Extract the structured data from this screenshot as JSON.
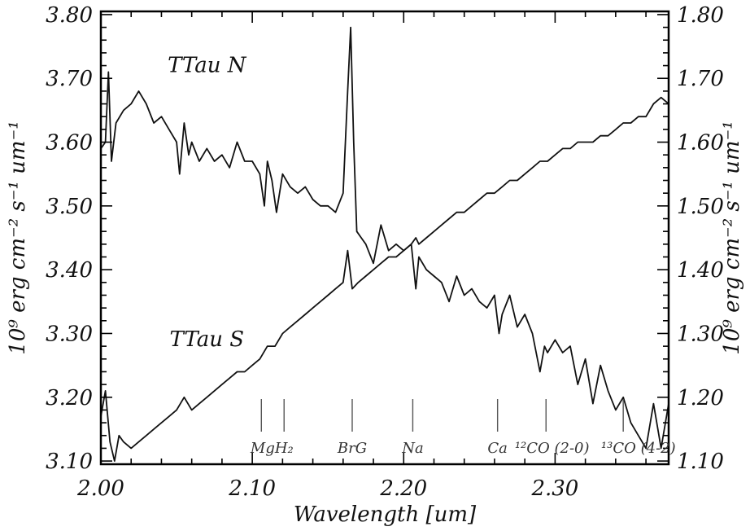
{
  "chart_data": {
    "type": "line",
    "xlabel": "Wavelength [um]",
    "ylabel_left": "10⁹ erg cm⁻² s⁻¹ um⁻¹",
    "ylabel_right": "10⁹ erg cm⁻² s⁻¹ um⁻¹",
    "xlim": [
      2.0,
      2.375
    ],
    "ylim_left": [
      3.095,
      3.805
    ],
    "ylim_right": [
      1.095,
      1.805
    ],
    "x_ticks": [
      2.0,
      2.1,
      2.2,
      2.3
    ],
    "x_tick_labels": [
      "2.00",
      "2.10",
      "2.20",
      "2.30"
    ],
    "y_left_ticks": [
      3.1,
      3.2,
      3.3,
      3.4,
      3.5,
      3.6,
      3.7,
      3.8
    ],
    "y_left_tick_labels": [
      "3.10",
      "3.20",
      "3.30",
      "3.40",
      "3.50",
      "3.60",
      "3.70",
      "3.80"
    ],
    "y_right_ticks": [
      1.1,
      1.2,
      1.3,
      1.4,
      1.5,
      1.6,
      1.7,
      1.8
    ],
    "y_right_tick_labels": [
      "1.10",
      "1.20",
      "1.30",
      "1.40",
      "1.50",
      "1.60",
      "1.70",
      "1.80"
    ],
    "grid": false,
    "series": [
      {
        "name": "TTau N",
        "axis": "left",
        "x": [
          2.0,
          2.003,
          2.005,
          2.007,
          2.01,
          2.015,
          2.02,
          2.025,
          2.03,
          2.035,
          2.04,
          2.045,
          2.05,
          2.052,
          2.055,
          2.058,
          2.06,
          2.065,
          2.07,
          2.075,
          2.08,
          2.085,
          2.09,
          2.095,
          2.1,
          2.105,
          2.108,
          2.11,
          2.113,
          2.116,
          2.12,
          2.125,
          2.13,
          2.135,
          2.14,
          2.145,
          2.15,
          2.155,
          2.16,
          2.163,
          2.165,
          2.167,
          2.169,
          2.172,
          2.175,
          2.18,
          2.185,
          2.19,
          2.195,
          2.2,
          2.205,
          2.208,
          2.21,
          2.215,
          2.22,
          2.225,
          2.23,
          2.235,
          2.24,
          2.245,
          2.25,
          2.255,
          2.26,
          2.263,
          2.265,
          2.27,
          2.275,
          2.28,
          2.285,
          2.29,
          2.293,
          2.295,
          2.3,
          2.305,
          2.31,
          2.315,
          2.32,
          2.325,
          2.33,
          2.335,
          2.34,
          2.345,
          2.35,
          2.355,
          2.36,
          2.365,
          2.37,
          2.375
        ],
        "y": [
          3.59,
          3.6,
          3.71,
          3.57,
          3.63,
          3.65,
          3.66,
          3.68,
          3.66,
          3.63,
          3.64,
          3.62,
          3.6,
          3.55,
          3.63,
          3.58,
          3.6,
          3.57,
          3.59,
          3.57,
          3.58,
          3.56,
          3.6,
          3.57,
          3.57,
          3.55,
          3.5,
          3.57,
          3.54,
          3.49,
          3.55,
          3.53,
          3.52,
          3.53,
          3.51,
          3.5,
          3.5,
          3.49,
          3.52,
          3.68,
          3.78,
          3.6,
          3.46,
          3.45,
          3.44,
          3.41,
          3.47,
          3.43,
          3.44,
          3.43,
          3.44,
          3.37,
          3.42,
          3.4,
          3.39,
          3.38,
          3.35,
          3.39,
          3.36,
          3.37,
          3.35,
          3.34,
          3.36,
          3.3,
          3.33,
          3.36,
          3.31,
          3.33,
          3.3,
          3.24,
          3.28,
          3.27,
          3.29,
          3.27,
          3.28,
          3.22,
          3.26,
          3.19,
          3.25,
          3.21,
          3.18,
          3.2,
          3.16,
          3.14,
          3.12,
          3.19,
          3.12,
          3.19
        ]
      },
      {
        "name": "TTau S",
        "axis": "right",
        "x": [
          2.0,
          2.003,
          2.006,
          2.009,
          2.012,
          2.015,
          2.02,
          2.025,
          2.03,
          2.035,
          2.04,
          2.045,
          2.05,
          2.055,
          2.06,
          2.065,
          2.07,
          2.075,
          2.08,
          2.085,
          2.09,
          2.095,
          2.1,
          2.105,
          2.11,
          2.115,
          2.12,
          2.125,
          2.13,
          2.135,
          2.14,
          2.145,
          2.15,
          2.155,
          2.16,
          2.163,
          2.166,
          2.17,
          2.175,
          2.18,
          2.185,
          2.19,
          2.195,
          2.2,
          2.205,
          2.208,
          2.21,
          2.215,
          2.22,
          2.225,
          2.23,
          2.235,
          2.24,
          2.245,
          2.25,
          2.255,
          2.26,
          2.265,
          2.27,
          2.275,
          2.28,
          2.285,
          2.29,
          2.295,
          2.3,
          2.305,
          2.31,
          2.315,
          2.32,
          2.325,
          2.33,
          2.335,
          2.34,
          2.345,
          2.35,
          2.355,
          2.36,
          2.365,
          2.37,
          2.375
        ],
        "y": [
          1.17,
          1.21,
          1.13,
          1.1,
          1.14,
          1.13,
          1.12,
          1.13,
          1.14,
          1.15,
          1.16,
          1.17,
          1.18,
          1.2,
          1.18,
          1.19,
          1.2,
          1.21,
          1.22,
          1.23,
          1.24,
          1.24,
          1.25,
          1.26,
          1.28,
          1.28,
          1.3,
          1.31,
          1.32,
          1.33,
          1.34,
          1.35,
          1.36,
          1.37,
          1.38,
          1.43,
          1.37,
          1.38,
          1.39,
          1.4,
          1.41,
          1.42,
          1.42,
          1.43,
          1.44,
          1.45,
          1.44,
          1.45,
          1.46,
          1.47,
          1.48,
          1.49,
          1.49,
          1.5,
          1.51,
          1.52,
          1.52,
          1.53,
          1.54,
          1.54,
          1.55,
          1.56,
          1.57,
          1.57,
          1.58,
          1.59,
          1.59,
          1.6,
          1.6,
          1.6,
          1.61,
          1.61,
          1.62,
          1.63,
          1.63,
          1.64,
          1.64,
          1.66,
          1.67,
          1.66
        ]
      }
    ],
    "annotations": [
      {
        "text": "TTau N",
        "x": 2.07,
        "y_left": 3.71
      },
      {
        "text": "TTau S",
        "x": 2.07,
        "y_left": 3.28
      }
    ],
    "line_markers": [
      {
        "label": "MgH₂",
        "x": 2.106,
        "label_x": 2.113
      },
      {
        "label": "",
        "x": 2.121
      },
      {
        "label": "BrG",
        "x": 2.166,
        "label_x": 2.166
      },
      {
        "label": "Na",
        "x": 2.206,
        "label_x": 2.206
      },
      {
        "label": "Ca",
        "x": 2.262,
        "label_x": 2.262
      },
      {
        "label": "¹²CO (2-0)",
        "x": 2.294,
        "label_x": 2.298
      },
      {
        "label": "¹³CO (4-2)",
        "x": 2.345,
        "label_x": 2.355
      }
    ]
  }
}
